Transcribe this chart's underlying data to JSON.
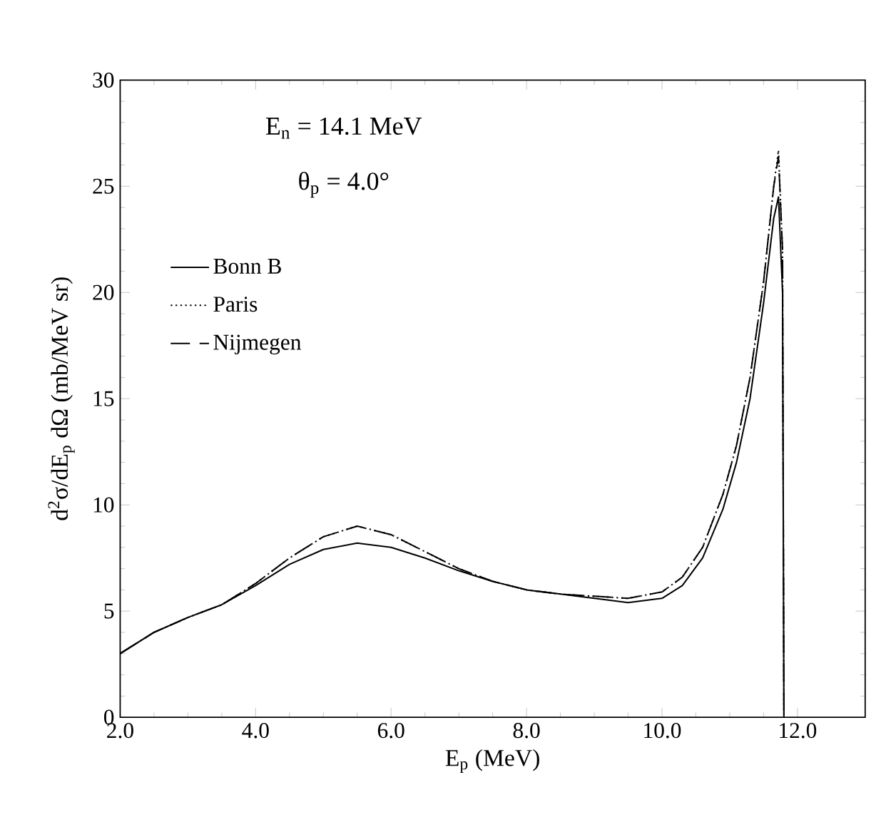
{
  "chart_data": {
    "type": "line",
    "xlabel": "E$_{p}$ (MeV)",
    "ylabel": "d$^{2}$σ/dE$_{p}$ dΩ  (mb/MeV sr)",
    "annotations": [
      "E$_{n}$ = 14.1 MeV",
      "θ$_{p}$ = 4.0°"
    ],
    "xlim": [
      2,
      13
    ],
    "ylim": [
      0,
      30
    ],
    "xticks": [
      {
        "value": 2,
        "label": "2.0"
      },
      {
        "value": 4,
        "label": "4.0"
      },
      {
        "value": 6,
        "label": "6.0"
      },
      {
        "value": 8,
        "label": "8.0"
      },
      {
        "value": 10,
        "label": "10.0"
      },
      {
        "value": 12,
        "label": "12.0"
      }
    ],
    "yticks": [
      0,
      5,
      10,
      15,
      20,
      25,
      30
    ],
    "legend": "top left",
    "grid": false,
    "marker": "none",
    "series": [
      {
        "name": "Bonn  B",
        "color": "#000000",
        "line_style": "solid",
        "x": [
          2.0,
          2.5,
          3.0,
          3.5,
          4.0,
          4.5,
          5.0,
          5.5,
          6.0,
          6.5,
          7.0,
          7.5,
          8.0,
          8.5,
          9.0,
          9.5,
          10.0,
          10.3,
          10.6,
          10.9,
          11.1,
          11.3,
          11.5,
          11.65,
          11.72,
          11.78,
          11.8
        ],
        "values": [
          3.0,
          4.0,
          4.7,
          5.3,
          6.2,
          7.2,
          7.9,
          8.2,
          8.0,
          7.5,
          6.9,
          6.4,
          6.0,
          5.8,
          5.6,
          5.4,
          5.6,
          6.2,
          7.5,
          9.8,
          12.0,
          15.0,
          19.5,
          23.5,
          24.5,
          20.0,
          0
        ]
      },
      {
        "name": "Paris",
        "color": "#000000",
        "line_style": "dotted",
        "x": [
          2.0,
          2.5,
          3.0,
          3.5,
          4.0,
          4.5,
          5.0,
          5.5,
          6.0,
          6.5,
          7.0,
          7.5,
          8.0,
          8.5,
          9.0,
          9.5,
          10.0,
          10.3,
          10.6,
          10.9,
          11.1,
          11.3,
          11.5,
          11.65,
          11.72,
          11.78,
          11.8
        ],
        "values": [
          3.0,
          4.0,
          4.7,
          5.3,
          6.3,
          7.5,
          8.5,
          9.0,
          8.6,
          7.8,
          7.0,
          6.4,
          6.0,
          5.8,
          5.7,
          5.6,
          5.9,
          6.6,
          8.0,
          10.5,
          12.8,
          16.0,
          20.5,
          25.0,
          26.7,
          22.0,
          0
        ]
      },
      {
        "name": "Nijmegen",
        "color": "#000000",
        "line_style": "dashed",
        "x": [
          2.0,
          2.5,
          3.0,
          3.5,
          4.0,
          4.5,
          5.0,
          5.5,
          6.0,
          6.5,
          7.0,
          7.5,
          8.0,
          8.5,
          9.0,
          9.5,
          10.0,
          10.3,
          10.6,
          10.9,
          11.1,
          11.3,
          11.5,
          11.65,
          11.72,
          11.78,
          11.8
        ],
        "values": [
          3.0,
          4.0,
          4.7,
          5.3,
          6.3,
          7.5,
          8.5,
          9.0,
          8.6,
          7.8,
          7.0,
          6.4,
          6.0,
          5.8,
          5.7,
          5.6,
          5.9,
          6.6,
          8.0,
          10.5,
          12.8,
          16.0,
          20.5,
          25.0,
          26.4,
          22.0,
          0
        ]
      }
    ]
  }
}
